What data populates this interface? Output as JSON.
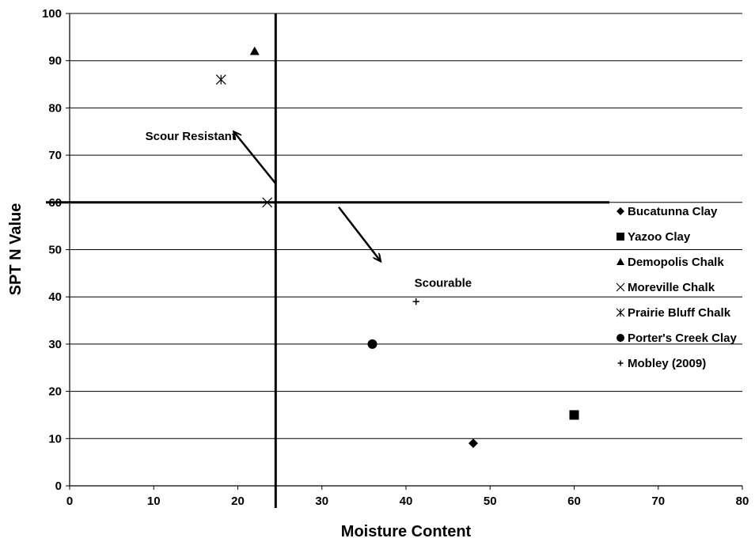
{
  "chart_data": {
    "type": "scatter",
    "xlabel": "Moisture Content",
    "ylabel": "SPT N Value",
    "xlim": [
      0,
      80
    ],
    "ylim": [
      0,
      100
    ],
    "xticks": [
      "0",
      "10",
      "20",
      "30",
      "40",
      "50",
      "60",
      "70",
      "80"
    ],
    "yticks": [
      "0",
      "10",
      "20",
      "30",
      "40",
      "50",
      "60",
      "70",
      "80",
      "90",
      "100"
    ],
    "grid": "horizontal",
    "legend_position": "right",
    "series": [
      {
        "name": "Bucatunna Clay",
        "marker": "diamond",
        "points": [
          [
            48,
            9
          ]
        ]
      },
      {
        "name": "Yazoo Clay",
        "marker": "square",
        "points": [
          [
            60,
            15
          ]
        ]
      },
      {
        "name": "Demopolis Chalk",
        "marker": "triangle",
        "points": [
          [
            22,
            92
          ]
        ]
      },
      {
        "name": "Moreville Chalk",
        "marker": "x",
        "points": [
          [
            23.5,
            60
          ]
        ]
      },
      {
        "name": "Prairie Bluff Chalk",
        "marker": "asterisk",
        "points": [
          [
            18,
            86
          ]
        ]
      },
      {
        "name": "Porter's Creek Clay",
        "marker": "circle",
        "points": [
          [
            36,
            30
          ]
        ]
      },
      {
        "name": "Mobley (2009)",
        "marker": "plus",
        "points": [
          [
            41.2,
            39
          ]
        ]
      }
    ],
    "threshold_lines": {
      "vertical_x": 24.5,
      "horizontal_y": 60
    },
    "annotations": [
      {
        "text": "Scour Resistant",
        "at": [
          9,
          74
        ],
        "arrow_from": [
          24.5,
          64
        ],
        "arrow_to": [
          19.5,
          75
        ]
      },
      {
        "text": "Scourable",
        "at": [
          41,
          43
        ],
        "arrow_from": [
          32,
          59
        ],
        "arrow_to": [
          37,
          47.5
        ]
      }
    ]
  }
}
